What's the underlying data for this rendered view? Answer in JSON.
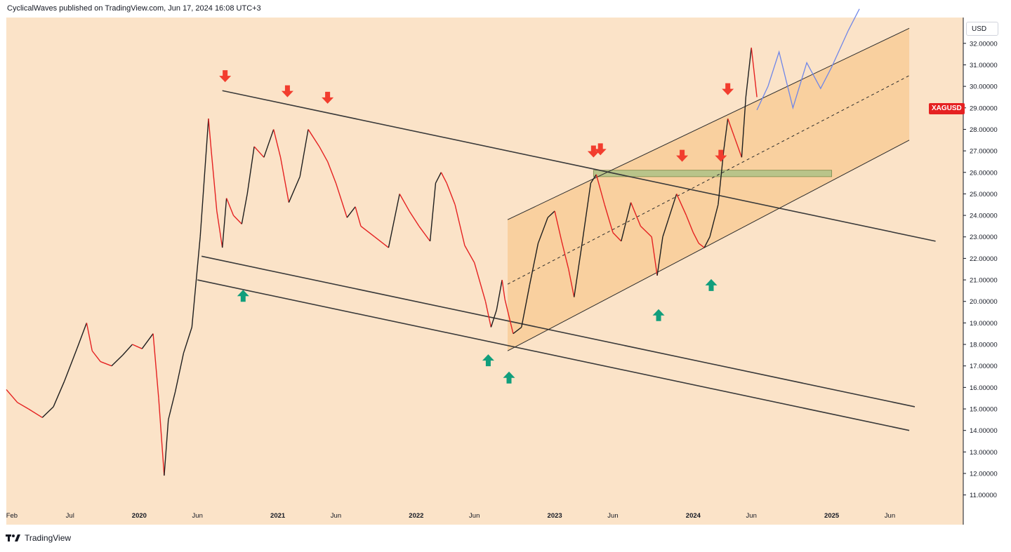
{
  "header": {
    "text": "CyclicalWaves published on TradingView.com, Jun 17, 2024 16:08 UTC+3"
  },
  "footer": {
    "brand": "TradingView",
    "logo_icon": "tradingview-logo-icon"
  },
  "currency_button": {
    "label": "USD"
  },
  "symbol_tag": {
    "label": "XAGUSD",
    "color": "#e52121"
  },
  "colors": {
    "background": "#fbe3c8",
    "channel_fill": "#f8cd98",
    "resistance_zone": "#b9c48a",
    "candle_up": "#1e1e1e",
    "candle_down": "#e52121",
    "projection": "#6f86e8",
    "arrow_down": "#f23d2e",
    "arrow_up": "#119e7c"
  },
  "chart_data": {
    "type": "line",
    "title": "",
    "ylabel": "",
    "ylim": [
      10.5,
      33.2
    ],
    "y_ticks": [
      "11.00000",
      "12.00000",
      "13.00000",
      "14.00000",
      "15.00000",
      "16.00000",
      "17.00000",
      "18.00000",
      "19.00000",
      "20.00000",
      "21.00000",
      "22.00000",
      "23.00000",
      "24.00000",
      "25.00000",
      "26.00000",
      "27.00000",
      "28.00000",
      "29.00000",
      "30.00000",
      "31.00000",
      "32.00000"
    ],
    "x_ticks": [
      {
        "label": "Feb",
        "t": 2019.08
      },
      {
        "label": "Jul",
        "t": 2019.5
      },
      {
        "label": "2020",
        "t": 2020.0
      },
      {
        "label": "Jun",
        "t": 2020.42
      },
      {
        "label": "2021",
        "t": 2021.0
      },
      {
        "label": "Jun",
        "t": 2021.42
      },
      {
        "label": "2022",
        "t": 2022.0
      },
      {
        "label": "Jun",
        "t": 2022.42
      },
      {
        "label": "2023",
        "t": 2023.0
      },
      {
        "label": "Jun",
        "t": 2023.42
      },
      {
        "label": "2024",
        "t": 2024.0
      },
      {
        "label": "Jun",
        "t": 2024.42
      },
      {
        "label": "2025",
        "t": 2025.0
      },
      {
        "label": "Jun",
        "t": 2025.42
      }
    ],
    "xlim": [
      2019.04,
      2025.95
    ],
    "series": [
      {
        "name": "XAGUSD",
        "x": [
          2019.04,
          2019.12,
          2019.2,
          2019.3,
          2019.38,
          2019.46,
          2019.55,
          2019.62,
          2019.66,
          2019.72,
          2019.8,
          2019.88,
          2019.95,
          2020.02,
          2020.1,
          2020.14,
          2020.18,
          2020.21,
          2020.26,
          2020.32,
          2020.38,
          2020.44,
          2020.5,
          2020.52,
          2020.56,
          2020.6,
          2020.63,
          2020.68,
          2020.74,
          2020.78,
          2020.83,
          2020.9,
          2020.97,
          2021.02,
          2021.08,
          2021.16,
          2021.22,
          2021.3,
          2021.36,
          2021.42,
          2021.5,
          2021.56,
          2021.6,
          2021.7,
          2021.8,
          2021.88,
          2021.95,
          2022.02,
          2022.1,
          2022.14,
          2022.18,
          2022.22,
          2022.28,
          2022.35,
          2022.42,
          2022.5,
          2022.54,
          2022.58,
          2022.62,
          2022.64,
          2022.7,
          2022.76,
          2022.82,
          2022.88,
          2022.95,
          2023.0,
          2023.05,
          2023.1,
          2023.14,
          2023.2,
          2023.26,
          2023.3,
          2023.36,
          2023.42,
          2023.48,
          2023.55,
          2023.62,
          2023.7,
          2023.74,
          2023.78,
          2023.82,
          2023.88,
          2023.95,
          2024.0,
          2024.04,
          2024.08,
          2024.12,
          2024.18,
          2024.22,
          2024.25,
          2024.3,
          2024.35,
          2024.38,
          2024.42,
          2024.46
        ],
        "y": [
          15.9,
          15.3,
          15.0,
          14.6,
          15.1,
          16.3,
          17.8,
          19.0,
          17.7,
          17.2,
          17.0,
          17.5,
          18.0,
          17.8,
          18.5,
          15.5,
          11.9,
          14.5,
          15.8,
          17.6,
          18.8,
          23.0,
          28.5,
          27.0,
          24.2,
          22.5,
          24.8,
          24.0,
          23.6,
          25.0,
          27.2,
          26.7,
          28.0,
          26.7,
          24.6,
          25.8,
          28.0,
          27.2,
          26.5,
          25.5,
          23.9,
          24.4,
          23.5,
          23.0,
          22.5,
          25.0,
          24.2,
          23.5,
          22.8,
          25.5,
          26.0,
          25.5,
          24.5,
          22.6,
          21.8,
          20.0,
          18.8,
          19.6,
          21.0,
          20.1,
          18.5,
          18.8,
          20.8,
          22.7,
          23.9,
          24.2,
          22.8,
          21.5,
          20.2,
          22.8,
          25.5,
          25.9,
          24.5,
          23.2,
          22.8,
          24.6,
          23.5,
          23.0,
          21.2,
          23.0,
          23.8,
          25.0,
          24.0,
          23.2,
          22.7,
          22.5,
          23.0,
          24.5,
          27.0,
          28.5,
          27.6,
          26.7,
          29.5,
          31.8,
          29.5
        ]
      },
      {
        "name": "",
        "style": "projection",
        "x": [
          2024.46,
          2024.54,
          2024.62,
          2024.72,
          2024.82,
          2024.92,
          2025.0,
          2025.12,
          2025.2
        ],
        "y": [
          28.9,
          30.0,
          31.6,
          29.0,
          31.1,
          29.9,
          30.9,
          32.6,
          33.6
        ]
      }
    ],
    "lines": [
      {
        "name": "descending-resistance",
        "from": [
          2020.6,
          29.8
        ],
        "to": [
          2025.75,
          22.8
        ]
      },
      {
        "name": "descending-support-upper",
        "from": [
          2020.45,
          22.1
        ],
        "to": [
          2025.6,
          15.1
        ]
      },
      {
        "name": "descending-support-lower",
        "from": [
          2020.42,
          21.0
        ],
        "to": [
          2025.56,
          14.0
        ]
      },
      {
        "name": "rising-channel-upper",
        "from": [
          2022.66,
          23.8
        ],
        "to": [
          2025.56,
          32.7
        ]
      },
      {
        "name": "rising-channel-lower",
        "from": [
          2022.66,
          17.7
        ],
        "to": [
          2025.56,
          27.5
        ]
      },
      {
        "name": "rising-channel-middle",
        "from": [
          2022.66,
          20.8
        ],
        "to": [
          2025.56,
          30.5
        ]
      }
    ],
    "zone": {
      "name": "resistance-zone",
      "x": [
        2023.28,
        2025.0
      ],
      "y": [
        25.8,
        26.1
      ]
    },
    "channel_box": {
      "x": [
        2022.66,
        2025.56
      ]
    },
    "markers_down": [
      {
        "t": 2020.62,
        "y": 29.9
      },
      {
        "t": 2021.07,
        "y": 29.2
      },
      {
        "t": 2021.36,
        "y": 28.9
      },
      {
        "t": 2023.28,
        "y": 26.4
      },
      {
        "t": 2023.33,
        "y": 26.5
      },
      {
        "t": 2023.92,
        "y": 26.2
      },
      {
        "t": 2024.2,
        "y": 26.2
      },
      {
        "t": 2024.25,
        "y": 29.3
      }
    ],
    "markers_up": [
      {
        "t": 2020.75,
        "y": 20.8
      },
      {
        "t": 2022.52,
        "y": 17.8
      },
      {
        "t": 2022.67,
        "y": 17.0
      },
      {
        "t": 2023.75,
        "y": 19.9
      },
      {
        "t": 2024.13,
        "y": 21.3
      }
    ],
    "grid": false,
    "legend": "none"
  }
}
